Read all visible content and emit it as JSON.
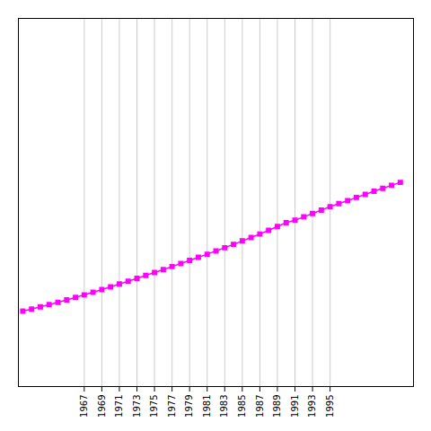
{
  "chart_data": {
    "type": "line",
    "x": [
      1960,
      1961,
      1962,
      1963,
      1964,
      1965,
      1966,
      1967,
      1968,
      1969,
      1970,
      1971,
      1972,
      1973,
      1974,
      1975,
      1976,
      1977,
      1978,
      1979,
      1980,
      1981,
      1982,
      1983,
      1984,
      1985,
      1986,
      1987,
      1988,
      1989,
      1990,
      1991,
      1992,
      1993,
      1994,
      1995,
      1996,
      1997,
      1998,
      1999,
      2000,
      2001,
      2002,
      2003
    ],
    "values": [
      450547,
      463188,
      476169,
      489577,
      503429,
      517746,
      532551,
      548160,
      563834,
      579799,
      596067,
      612569,
      629267,
      646327,
      663623,
      681180,
      698936,
      716984,
      735294,
      753826,
      772535,
      790591,
      810017,
      829838,
      849938,
      870133,
      890442,
      911561,
      933538,
      956164,
      979671,
      994023,
      1013662,
      1033894,
      1054448,
      1075140,
      1093213,
      1111000,
      1130000,
      1148000,
      1166650,
      1184639,
      1202500,
      1220000
    ],
    "color": "#ff00ff",
    "marker": "square",
    "line_style": "solid",
    "xlim": [
      1959.5,
      2004.5
    ],
    "xticks": [
      1967,
      1969,
      1971,
      1973,
      1975,
      1977,
      1979,
      1981,
      1983,
      1985,
      1987,
      1989,
      1991,
      1993,
      1995
    ],
    "ylim": [
      0,
      2200000
    ],
    "yticks": [],
    "grid": true,
    "tick_labels": "x"
  }
}
